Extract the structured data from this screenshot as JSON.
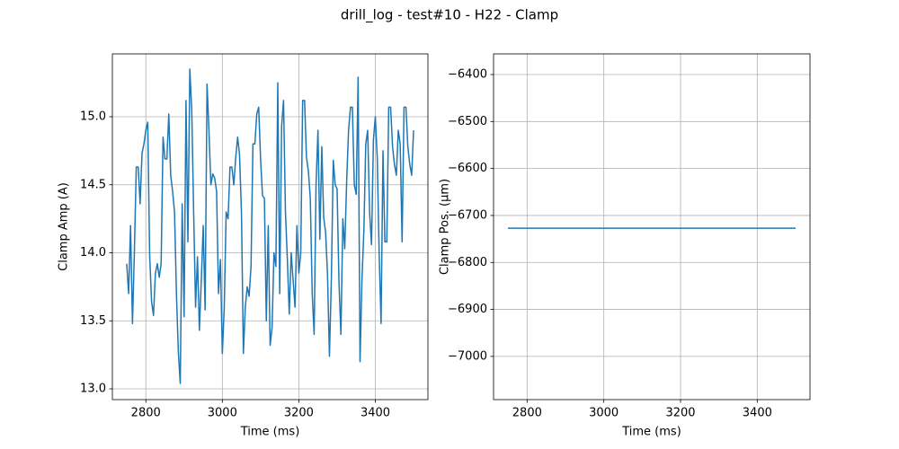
{
  "title": "drill_log - test#10 - H22 - Clamp",
  "chart_data": [
    {
      "type": "line",
      "xlabel": "Time (ms)",
      "ylabel": "Clamp Amp (A)",
      "x": [
        2750,
        2755,
        2760,
        2765,
        2770,
        2775,
        2780,
        2785,
        2790,
        2795,
        2800,
        2805,
        2810,
        2815,
        2820,
        2825,
        2830,
        2835,
        2840,
        2845,
        2850,
        2855,
        2860,
        2865,
        2870,
        2875,
        2880,
        2885,
        2890,
        2895,
        2900,
        2905,
        2910,
        2915,
        2920,
        2925,
        2930,
        2935,
        2940,
        2945,
        2950,
        2955,
        2960,
        2965,
        2970,
        2975,
        2980,
        2985,
        2990,
        2995,
        3000,
        3005,
        3010,
        3015,
        3020,
        3025,
        3030,
        3035,
        3040,
        3045,
        3050,
        3055,
        3060,
        3065,
        3070,
        3075,
        3080,
        3085,
        3090,
        3095,
        3100,
        3105,
        3110,
        3115,
        3120,
        3125,
        3130,
        3135,
        3140,
        3145,
        3150,
        3155,
        3160,
        3165,
        3170,
        3175,
        3180,
        3185,
        3190,
        3195,
        3200,
        3205,
        3210,
        3215,
        3220,
        3225,
        3230,
        3235,
        3240,
        3245,
        3250,
        3255,
        3260,
        3265,
        3270,
        3275,
        3280,
        3285,
        3290,
        3295,
        3300,
        3305,
        3310,
        3315,
        3320,
        3325,
        3330,
        3335,
        3340,
        3345,
        3350,
        3355,
        3360,
        3365,
        3370,
        3375,
        3380,
        3385,
        3390,
        3395,
        3400,
        3405,
        3410,
        3415,
        3420,
        3425,
        3430,
        3435,
        3440,
        3445,
        3450,
        3455,
        3460,
        3465,
        3470,
        3475,
        3480,
        3485,
        3490,
        3495,
        3500
      ],
      "series": [
        {
          "color": "#1f77b4",
          "values": [
            13.92,
            13.7,
            14.2,
            13.48,
            14.0,
            14.63,
            14.63,
            14.36,
            14.73,
            14.8,
            14.9,
            14.96,
            13.98,
            13.64,
            13.54,
            13.85,
            13.92,
            13.82,
            13.92,
            14.85,
            14.69,
            14.69,
            15.02,
            14.57,
            14.45,
            14.3,
            13.7,
            13.27,
            13.04,
            14.36,
            13.53,
            15.12,
            14.08,
            15.35,
            15.05,
            14.3,
            13.6,
            13.97,
            13.43,
            13.8,
            14.2,
            13.58,
            15.24,
            14.9,
            14.5,
            14.58,
            14.55,
            14.45,
            13.7,
            13.95,
            13.26,
            13.6,
            14.3,
            14.25,
            14.63,
            14.63,
            14.5,
            14.7,
            14.85,
            14.72,
            14.3,
            13.26,
            13.6,
            13.75,
            13.68,
            13.9,
            14.8,
            14.8,
            15.02,
            15.07,
            14.69,
            14.42,
            14.4,
            13.5,
            14.2,
            13.32,
            13.45,
            14.0,
            13.9,
            15.25,
            13.7,
            14.93,
            15.12,
            14.3,
            13.95,
            13.55,
            14.0,
            13.8,
            13.6,
            14.2,
            13.85,
            14.0,
            15.12,
            15.12,
            14.7,
            14.6,
            14.4,
            13.7,
            13.4,
            14.5,
            14.9,
            14.1,
            14.78,
            14.26,
            14.15,
            13.84,
            13.24,
            13.8,
            14.68,
            14.5,
            14.47,
            13.78,
            13.4,
            14.25,
            14.03,
            14.52,
            14.9,
            15.07,
            15.07,
            14.5,
            14.43,
            15.29,
            13.2,
            13.8,
            14.16,
            14.8,
            14.9,
            14.3,
            14.06,
            14.83,
            15.0,
            14.7,
            14.0,
            13.48,
            14.75,
            14.08,
            14.08,
            15.07,
            15.07,
            14.78,
            14.65,
            14.57,
            14.9,
            14.8,
            14.08,
            15.07,
            15.07,
            14.78,
            14.65,
            14.57,
            14.9
          ]
        }
      ],
      "xlim": [
        2712.5,
        3537.5
      ],
      "ylim": [
        12.921,
        15.462
      ],
      "xticks": [
        2800,
        3000,
        3200,
        3400
      ],
      "yticks": [
        {
          "value": 13,
          "label": "13.0"
        },
        13.5,
        {
          "value": 14,
          "label": "14.0"
        },
        14.5,
        {
          "value": 15,
          "label": "15.0"
        }
      ],
      "grid": true
    },
    {
      "type": "line",
      "xlabel": "Time (ms)",
      "ylabel": "Clamp Pos. (µm)",
      "x": [
        2750,
        3500
      ],
      "series": [
        {
          "color": "#1f77b4",
          "values": [
            -6727,
            -6727
          ]
        }
      ],
      "xlim": [
        2712.5,
        3537.5
      ],
      "ylim": [
        -7092,
        -6356
      ],
      "xticks": [
        2800,
        3000,
        3200,
        3400
      ],
      "yticks": [
        {
          "value": -6400,
          "label": "−6400"
        },
        {
          "value": -6500,
          "label": "−6500"
        },
        {
          "value": -6600,
          "label": "−6600"
        },
        {
          "value": -6700,
          "label": "−6700"
        },
        {
          "value": -6800,
          "label": "−6800"
        },
        {
          "value": -6900,
          "label": "−6900"
        },
        {
          "value": -7000,
          "label": "−7000"
        }
      ],
      "grid": true
    }
  ]
}
